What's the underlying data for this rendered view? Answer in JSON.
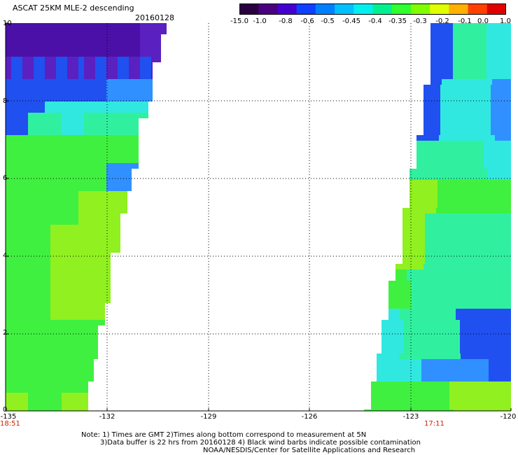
{
  "title": "ASCAT 25KM MLE-2 descending",
  "date": "20160128",
  "colorbar": {
    "labels": [
      "-15.0",
      "-1.0",
      "-0.8",
      "-0.6",
      "-0.5",
      "-0.45",
      "-0.4",
      "-0.35",
      "-0.3",
      "-0.2",
      "-0.1",
      "0.0",
      "1.0"
    ],
    "colors": [
      "#2a0040",
      "#4a0080",
      "#4400d0",
      "#1040ff",
      "#0080ff",
      "#00c0ff",
      "#00f0f0",
      "#00f090",
      "#30ff30",
      "#80ff00",
      "#e0ff00",
      "#ffb000",
      "#ff4000",
      "#e00000"
    ]
  },
  "axes": {
    "y_labels": [
      "10",
      "8",
      "6",
      "4",
      "2",
      "0"
    ],
    "x_labels": [
      "-135",
      "-132",
      "-129",
      "-126",
      "-123",
      "-120"
    ]
  },
  "time_labels": {
    "left": "18:51",
    "right": "17:11"
  },
  "notes": [
    "Note: 1) Times are GMT 2)Times along bottom correspond to measurement at 5N",
    "3)Data buffer is 22 hrs from 20160128 4) Black wind barbs indicate possible contamination",
    "NOAA/NESDIS/Center for Satellite Applications and Research"
  ],
  "palette": {
    "deep_purple": "#4a10a8",
    "purple": "#5a20c0",
    "blue": "#2050f0",
    "light_blue": "#3090ff",
    "cyan": "#30e8e0",
    "aqua_green": "#30f0a0",
    "green": "#40f040",
    "lime": "#90f020"
  }
}
